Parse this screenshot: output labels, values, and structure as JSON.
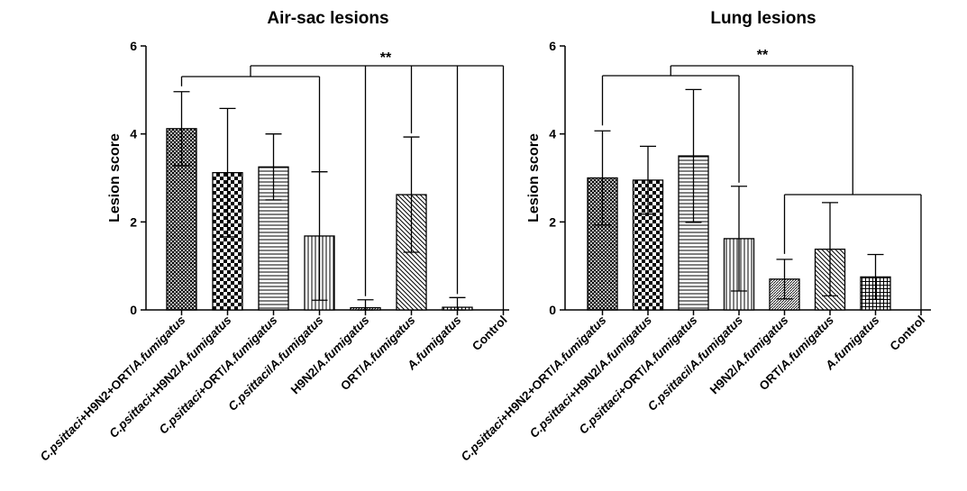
{
  "chart_data": [
    {
      "type": "bar",
      "title": "Air-sac lesions",
      "xlabel": "",
      "ylabel": "Lesion score",
      "ylim": [
        0,
        6
      ],
      "yticks": [
        "0",
        "2",
        "4",
        "6"
      ],
      "categories": [
        "C.psittaci+H9N2+ORT/A.fumigatus",
        "C.psittaci+H9N2/A.fumigatus",
        "C.psittaci+ORT/A.fumigatus",
        "C.psittaci/A.fumigatus",
        "H9N2/A.fumigatus",
        "ORT/A.fumigatus",
        "A.fumigatus",
        "Control"
      ],
      "values": [
        4.12,
        3.12,
        3.25,
        1.68,
        0.05,
        2.62,
        0.06,
        0
      ],
      "errors": [
        0.84,
        1.46,
        0.75,
        1.46,
        0.18,
        1.31,
        0.22,
        0
      ],
      "patterns": [
        "crosshatch-dense",
        "checker",
        "horizontal",
        "vertical",
        "diag-fine",
        "diag",
        "grid",
        "none"
      ],
      "significance": [
        {
          "label": "**",
          "from": [
            0,
            1,
            2,
            3
          ],
          "to": [
            4,
            5,
            6,
            7
          ]
        }
      ],
      "grid": false,
      "legend": "none"
    },
    {
      "type": "bar",
      "title": "Lung  lesions",
      "xlabel": "",
      "ylabel": "Lesion score",
      "ylim": [
        0,
        6
      ],
      "yticks": [
        "0",
        "2",
        "4",
        "6"
      ],
      "categories": [
        "C.psittaci+H9N2+ORT/A.fumigatus",
        "C.psittaci+H9N2/A.fumigatus",
        "C.psittaci+ORT/A.fumigatus",
        "C.psittaci/A.fumigatus",
        "H9N2/A.fumigatus",
        "ORT/A.fumigatus",
        "A.fumigatus",
        "Control"
      ],
      "values": [
        3.0,
        2.95,
        3.5,
        1.62,
        0.7,
        1.38,
        0.75,
        0
      ],
      "errors": [
        1.07,
        0.77,
        1.51,
        1.19,
        0.45,
        1.06,
        0.51,
        0
      ],
      "patterns": [
        "crosshatch-dense",
        "checker",
        "horizontal",
        "vertical",
        "diag-fine",
        "diag",
        "grid",
        "none"
      ],
      "significance": [
        {
          "label": "**",
          "from": [
            0,
            1,
            2,
            3
          ],
          "to": [
            4,
            5,
            6,
            7
          ]
        }
      ],
      "grid": false,
      "legend": "none"
    }
  ]
}
